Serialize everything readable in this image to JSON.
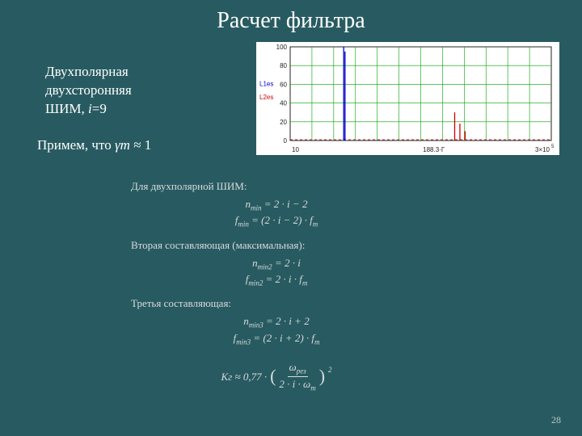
{
  "title": "Расчет фильтра",
  "left": {
    "line1": "Двухполярная",
    "line2": "двухсторонняя",
    "line3_a": "ШИМ, ",
    "line3_i": "i",
    "line3_b": "=9",
    "assume_a": "Примем, что ",
    "assume_g": "γm",
    "assume_b": " ≈ 1"
  },
  "body": {
    "heading1": "Для двухполярной ШИМ:",
    "eq1a": "n",
    "eq1a_sub": "min",
    "eq1a_rhs": " = 2 · i − 2",
    "eq1b": "f",
    "eq1b_sub": "min",
    "eq1b_rhs": " = (2 · i − 2) · f",
    "eq1b_sub2": "m",
    "heading2": "Вторая составляющая (максимальная):",
    "eq2a": "n",
    "eq2a_sub": "min2",
    "eq2a_rhs": " = 2 · i",
    "eq2b": "f",
    "eq2b_sub": "min2",
    "eq2b_rhs": " = 2 · i · f",
    "eq2b_sub2": "m",
    "heading3": "Третья составляющая:",
    "eq3a": "n",
    "eq3a_sub": "min3",
    "eq3a_rhs": " = 2 · i + 2",
    "eq3b": "f",
    "eq3b_sub": "min3",
    "eq3b_rhs": " = (2 · i + 2) · f",
    "eq3b_sub2": "m",
    "final_K": "Kг ≈ 0,77 · ",
    "final_frac_num_a": "ω",
    "final_frac_num_sub": "рез",
    "final_frac_den_a": "2 · i · ω",
    "final_frac_den_sub": "m",
    "final_pow": "2"
  },
  "chart": {
    "bg": "#ffffff",
    "plot_bg": "#ffffff",
    "axis_color": "#222222",
    "grid_color": "#00a000",
    "red": "#d00000",
    "blue": "#0000cc",
    "xlim": [
      0,
      300000
    ],
    "ylim": [
      0,
      100
    ],
    "yticks": [
      0,
      20,
      40,
      60,
      80,
      100
    ],
    "xticks_labels": [
      "10",
      "188.3·Г",
      "3×10"
    ],
    "ylabel_a": "L1es",
    "ylabel_b": "L2es",
    "spikes_blue": [
      {
        "x": 0.205,
        "h": 1.0
      },
      {
        "x": 0.21,
        "h": 0.95
      }
    ],
    "spikes_red": [
      {
        "x": 0.63,
        "h": 0.3
      },
      {
        "x": 0.65,
        "h": 0.18
      },
      {
        "x": 0.67,
        "h": 0.1
      }
    ]
  },
  "page_number": "28"
}
